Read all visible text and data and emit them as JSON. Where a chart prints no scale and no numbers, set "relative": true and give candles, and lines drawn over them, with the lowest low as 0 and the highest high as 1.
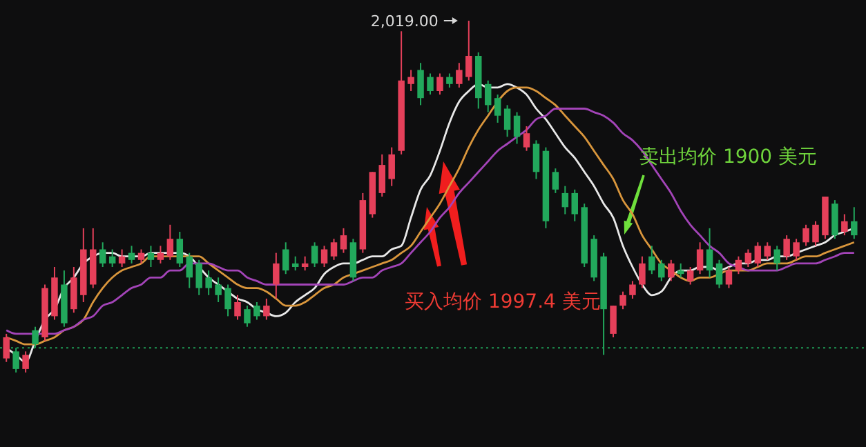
{
  "chart_data": {
    "type": "candlestick",
    "relative": true,
    "categories": [
      null,
      null,
      null,
      null,
      null,
      null,
      null,
      null,
      null,
      null,
      null,
      null,
      null,
      null,
      null,
      null,
      null,
      null,
      null,
      null,
      null,
      null,
      null,
      null,
      null,
      null,
      null,
      null,
      null,
      null,
      null,
      null,
      null,
      null,
      null,
      null,
      null,
      null,
      null,
      null,
      null,
      null,
      null,
      null,
      null,
      null,
      null,
      null,
      null,
      null,
      null,
      null,
      null,
      null,
      null,
      null,
      null,
      null,
      null,
      null,
      null,
      null,
      null,
      null,
      null,
      null,
      null,
      null,
      null,
      null,
      null,
      null,
      null,
      null,
      null,
      null,
      null,
      null,
      null,
      null,
      null,
      null,
      null,
      null,
      null,
      null,
      null,
      null,
      null
    ],
    "ohlc": [
      [
        0.04,
        0.11,
        0.03,
        0.1
      ],
      [
        0.06,
        0.07,
        0.0,
        0.01
      ],
      [
        0.01,
        0.06,
        0.0,
        0.05
      ],
      [
        0.12,
        0.13,
        0.07,
        0.08
      ],
      [
        0.1,
        0.25,
        0.09,
        0.24
      ],
      [
        0.16,
        0.3,
        0.15,
        0.27
      ],
      [
        0.25,
        0.29,
        0.13,
        0.14
      ],
      [
        0.18,
        0.3,
        0.17,
        0.27
      ],
      [
        0.22,
        0.41,
        0.2,
        0.35
      ],
      [
        0.25,
        0.41,
        0.24,
        0.35
      ],
      [
        0.35,
        0.37,
        0.3,
        0.31
      ],
      [
        0.33,
        0.35,
        0.3,
        0.31
      ],
      [
        0.31,
        0.35,
        0.3,
        0.33
      ],
      [
        0.34,
        0.36,
        0.31,
        0.32
      ],
      [
        0.32,
        0.35,
        0.31,
        0.34
      ],
      [
        0.34,
        0.36,
        0.3,
        0.32
      ],
      [
        0.32,
        0.36,
        0.31,
        0.34
      ],
      [
        0.33,
        0.42,
        0.32,
        0.38
      ],
      [
        0.38,
        0.4,
        0.3,
        0.31
      ],
      [
        0.33,
        0.34,
        0.24,
        0.27
      ],
      [
        0.31,
        0.32,
        0.22,
        0.24
      ],
      [
        0.27,
        0.29,
        0.22,
        0.24
      ],
      [
        0.25,
        0.27,
        0.2,
        0.22
      ],
      [
        0.24,
        0.25,
        0.16,
        0.18
      ],
      [
        0.16,
        0.22,
        0.15,
        0.2
      ],
      [
        0.18,
        0.19,
        0.13,
        0.14
      ],
      [
        0.19,
        0.2,
        0.15,
        0.16
      ],
      [
        0.16,
        0.21,
        0.15,
        0.19
      ],
      [
        0.25,
        0.34,
        0.21,
        0.31
      ],
      [
        0.35,
        0.37,
        0.28,
        0.29
      ],
      [
        0.31,
        0.33,
        0.29,
        0.3
      ],
      [
        0.3,
        0.33,
        0.29,
        0.31
      ],
      [
        0.36,
        0.37,
        0.3,
        0.31
      ],
      [
        0.31,
        0.36,
        0.3,
        0.35
      ],
      [
        0.33,
        0.38,
        0.32,
        0.37
      ],
      [
        0.35,
        0.41,
        0.34,
        0.39
      ],
      [
        0.37,
        0.38,
        0.26,
        0.27
      ],
      [
        0.35,
        0.51,
        0.34,
        0.49
      ],
      [
        0.45,
        0.57,
        0.44,
        0.57
      ],
      [
        0.51,
        0.62,
        0.5,
        0.59
      ],
      [
        0.55,
        0.64,
        0.53,
        0.62
      ],
      [
        0.63,
        0.97,
        0.62,
        0.83
      ],
      [
        0.82,
        0.86,
        0.8,
        0.84
      ],
      [
        0.86,
        0.88,
        0.76,
        0.78
      ],
      [
        0.84,
        0.85,
        0.79,
        0.8
      ],
      [
        0.8,
        0.85,
        0.79,
        0.84
      ],
      [
        0.84,
        0.85,
        0.81,
        0.82
      ],
      [
        0.82,
        0.88,
        0.81,
        0.86
      ],
      [
        0.84,
        1.0,
        0.83,
        0.9
      ],
      [
        0.9,
        0.91,
        0.75,
        0.78
      ],
      [
        0.82,
        0.83,
        0.74,
        0.76
      ],
      [
        0.78,
        0.79,
        0.71,
        0.73
      ],
      [
        0.75,
        0.76,
        0.67,
        0.69
      ],
      [
        0.73,
        0.74,
        0.65,
        0.67
      ],
      [
        0.64,
        0.7,
        0.63,
        0.68
      ],
      [
        0.65,
        0.66,
        0.55,
        0.57
      ],
      [
        0.63,
        0.64,
        0.41,
        0.43
      ],
      [
        0.57,
        0.58,
        0.51,
        0.52
      ],
      [
        0.51,
        0.53,
        0.45,
        0.47
      ],
      [
        0.51,
        0.52,
        0.43,
        0.45
      ],
      [
        0.47,
        0.48,
        0.3,
        0.31
      ],
      [
        0.38,
        0.39,
        0.26,
        0.27
      ],
      [
        0.33,
        0.34,
        0.05,
        0.18
      ],
      [
        0.11,
        0.19,
        0.1,
        0.19
      ],
      [
        0.19,
        0.23,
        0.18,
        0.22
      ],
      [
        0.22,
        0.26,
        0.21,
        0.25
      ],
      [
        0.25,
        0.33,
        0.24,
        0.31
      ],
      [
        0.33,
        0.36,
        0.28,
        0.29
      ],
      [
        0.31,
        0.32,
        0.26,
        0.27
      ],
      [
        0.27,
        0.32,
        0.26,
        0.31
      ],
      [
        0.29,
        0.31,
        0.27,
        0.28
      ],
      [
        0.26,
        0.3,
        0.25,
        0.29
      ],
      [
        0.29,
        0.37,
        0.28,
        0.35
      ],
      [
        0.35,
        0.41,
        0.27,
        0.29
      ],
      [
        0.31,
        0.32,
        0.24,
        0.25
      ],
      [
        0.25,
        0.3,
        0.24,
        0.29
      ],
      [
        0.29,
        0.33,
        0.28,
        0.32
      ],
      [
        0.31,
        0.35,
        0.3,
        0.34
      ],
      [
        0.31,
        0.37,
        0.3,
        0.36
      ],
      [
        0.33,
        0.37,
        0.32,
        0.36
      ],
      [
        0.35,
        0.36,
        0.29,
        0.31
      ],
      [
        0.33,
        0.39,
        0.32,
        0.38
      ],
      [
        0.33,
        0.38,
        0.32,
        0.37
      ],
      [
        0.37,
        0.42,
        0.36,
        0.41
      ],
      [
        0.37,
        0.43,
        0.36,
        0.42
      ],
      [
        0.39,
        0.5,
        0.38,
        0.5
      ],
      [
        0.48,
        0.49,
        0.38,
        0.39
      ],
      [
        0.4,
        0.45,
        0.39,
        0.43
      ],
      [
        0.43,
        0.47,
        0.38,
        0.39
      ]
    ],
    "series": [
      {
        "type": "line",
        "color": "#e8e8e8",
        "values": [
          0.07,
          0.05,
          0.03,
          0.09,
          0.15,
          0.18,
          0.24,
          0.27,
          0.31,
          0.33,
          0.34,
          0.34,
          0.33,
          0.33,
          0.33,
          0.34,
          0.34,
          0.34,
          0.34,
          0.33,
          0.3,
          0.27,
          0.25,
          0.23,
          0.21,
          0.2,
          0.18,
          0.17,
          0.16,
          0.17,
          0.2,
          0.22,
          0.24,
          0.28,
          0.3,
          0.31,
          0.31,
          0.32,
          0.33,
          0.33,
          0.35,
          0.36,
          0.44,
          0.52,
          0.56,
          0.63,
          0.71,
          0.77,
          0.8,
          0.82,
          0.81,
          0.81,
          0.82,
          0.81,
          0.79,
          0.75,
          0.72,
          0.68,
          0.64,
          0.61,
          0.57,
          0.53,
          0.48,
          0.44,
          0.36,
          0.3,
          0.25,
          0.22,
          0.23,
          0.27,
          0.29,
          0.29,
          0.3,
          0.3,
          0.29,
          0.3,
          0.31,
          0.31,
          0.32,
          0.32,
          0.33,
          0.33,
          0.34,
          0.35,
          0.36,
          0.37,
          0.39,
          0.4,
          0.41
        ]
      },
      {
        "type": "line",
        "color": "#d9963c",
        "values": [
          0.1,
          0.09,
          0.08,
          0.08,
          0.09,
          0.1,
          0.12,
          0.13,
          0.15,
          0.2,
          0.24,
          0.27,
          0.29,
          0.3,
          0.31,
          0.33,
          0.33,
          0.33,
          0.33,
          0.33,
          0.33,
          0.31,
          0.29,
          0.27,
          0.25,
          0.24,
          0.24,
          0.23,
          0.21,
          0.19,
          0.19,
          0.2,
          0.22,
          0.24,
          0.25,
          0.27,
          0.28,
          0.29,
          0.3,
          0.31,
          0.32,
          0.34,
          0.36,
          0.4,
          0.44,
          0.48,
          0.53,
          0.58,
          0.64,
          0.69,
          0.73,
          0.77,
          0.8,
          0.81,
          0.81,
          0.8,
          0.78,
          0.76,
          0.73,
          0.7,
          0.67,
          0.63,
          0.59,
          0.55,
          0.49,
          0.45,
          0.39,
          0.35,
          0.31,
          0.29,
          0.27,
          0.26,
          0.27,
          0.27,
          0.28,
          0.29,
          0.29,
          0.29,
          0.3,
          0.31,
          0.31,
          0.31,
          0.32,
          0.33,
          0.33,
          0.34,
          0.35,
          0.36,
          0.37
        ]
      },
      {
        "type": "line",
        "color": "#a344b8",
        "values": [
          0.12,
          0.11,
          0.11,
          0.11,
          0.11,
          0.11,
          0.12,
          0.13,
          0.15,
          0.16,
          0.19,
          0.2,
          0.22,
          0.24,
          0.25,
          0.27,
          0.27,
          0.29,
          0.29,
          0.31,
          0.31,
          0.31,
          0.3,
          0.29,
          0.29,
          0.27,
          0.26,
          0.25,
          0.25,
          0.25,
          0.25,
          0.25,
          0.25,
          0.25,
          0.25,
          0.25,
          0.26,
          0.27,
          0.27,
          0.29,
          0.3,
          0.31,
          0.34,
          0.37,
          0.4,
          0.44,
          0.47,
          0.51,
          0.54,
          0.57,
          0.6,
          0.63,
          0.65,
          0.67,
          0.69,
          0.72,
          0.73,
          0.75,
          0.75,
          0.75,
          0.75,
          0.74,
          0.73,
          0.71,
          0.68,
          0.66,
          0.63,
          0.59,
          0.55,
          0.51,
          0.46,
          0.42,
          0.39,
          0.36,
          0.34,
          0.31,
          0.3,
          0.29,
          0.29,
          0.29,
          0.29,
          0.3,
          0.31,
          0.31,
          0.31,
          0.32,
          0.33,
          0.34,
          0.34
        ]
      }
    ],
    "ref_lines": [
      {
        "axis": "y",
        "value": 0.07,
        "color": "#1f9a55",
        "line_style": "dotted"
      }
    ],
    "annotations": [
      "2,019.00",
      "买入均价 1997.4 美元",
      "卖出均价 1900 美元"
    ]
  }
}
